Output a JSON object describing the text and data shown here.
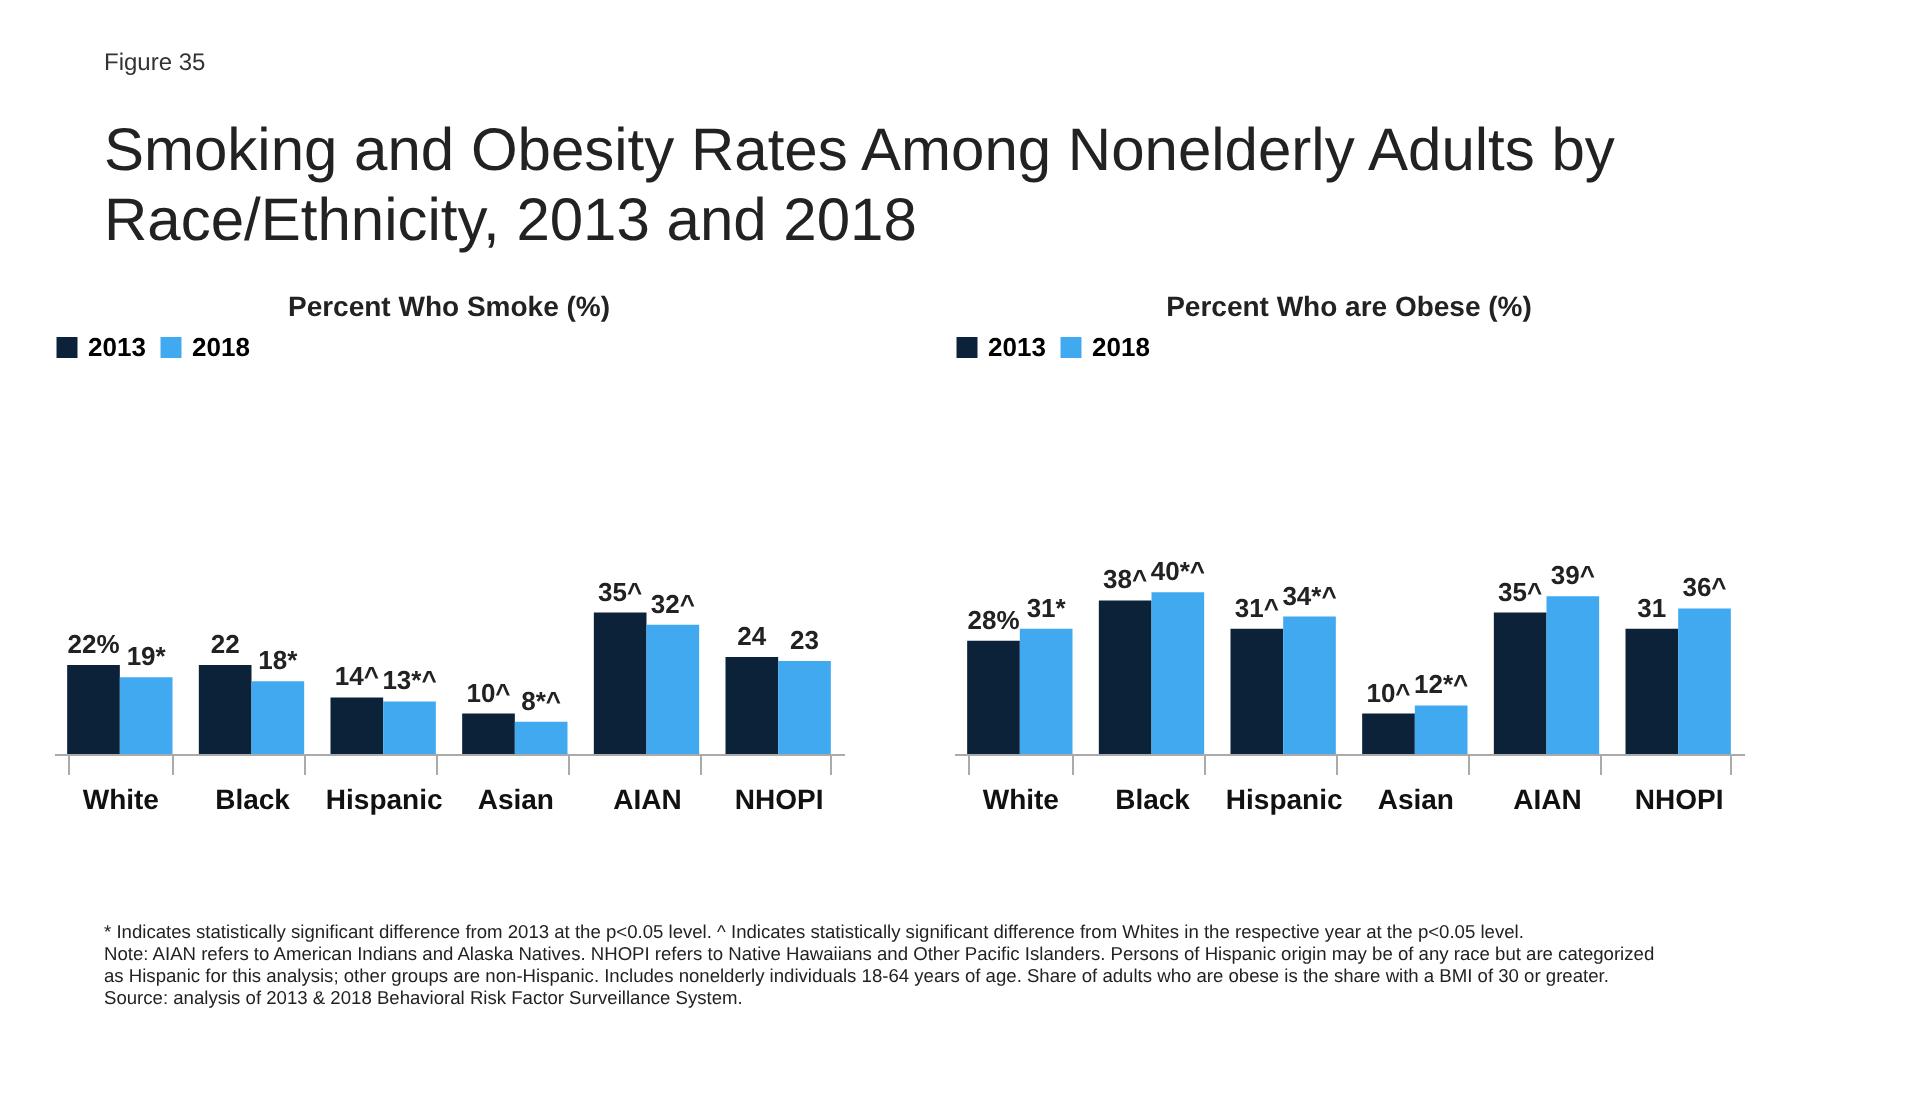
{
  "chart_data": [
    {
      "type": "bar",
      "title": "Percent Who Smoke (%)",
      "categories": [
        "White",
        "Black",
        "Hispanic",
        "Asian",
        "AIAN",
        "NHOPI"
      ],
      "legend": "top",
      "annotations": [
        "Figure 35",
        "Smoking and Obesity Rates Among Nonelderly Adults by Race/Ethnicity, 2013 and 2018",
        "* Indicates statistically significant difference from 2013 at the p<0.05 level. ^ Indicates statistically significant difference from Whites in the respective year at the p<0.05 level.",
        "Note: AIAN refers to American Indians and Alaska Natives. NHOPI refers to Native Hawaiians and Other Pacific Islanders. Persons of Hispanic origin may be of any race but are categorized as Hispanic for this analysis; other groups are non-Hispanic. Includes nonelderly individuals 18-64 years of age. Share of adults who are obese is the share with a BMI of 30 or greater.",
        "Source: analysis of 2013 & 2018 Behavioral Risk Factor Surveillance System."
      ],
      "series": [
        {
          "name": "2013",
          "color": "#0b2239",
          "values": [
            22,
            22,
            14,
            10,
            35,
            24
          ],
          "value_labels": [
            "22%",
            "22",
            "14^",
            "10^",
            "35^",
            "24"
          ]
        },
        {
          "name": "2018",
          "color": "#41a9f0",
          "values": [
            19,
            18,
            13,
            8,
            32,
            23
          ],
          "value_labels": [
            "19*",
            "18*",
            "13*^",
            "8*^",
            "32^",
            "23"
          ]
        }
      ]
    },
    {
      "type": "bar",
      "title": "Percent Who are Obese (%)",
      "categories": [
        "White",
        "Black",
        "Hispanic",
        "Asian",
        "AIAN",
        "NHOPI"
      ],
      "legend": "top",
      "series": [
        {
          "name": "2013",
          "color": "#0b2239",
          "values": [
            28,
            38,
            31,
            10,
            35,
            31
          ],
          "value_labels": [
            "28%",
            "38^",
            "31^",
            "10^",
            "35^",
            "31"
          ]
        },
        {
          "name": "2018",
          "color": "#41a9f0",
          "values": [
            31,
            40,
            34,
            12,
            39,
            36
          ],
          "value_labels": [
            "31*",
            "40*^",
            "34*^",
            "12*^",
            "39^",
            "36^"
          ]
        }
      ]
    }
  ]
}
